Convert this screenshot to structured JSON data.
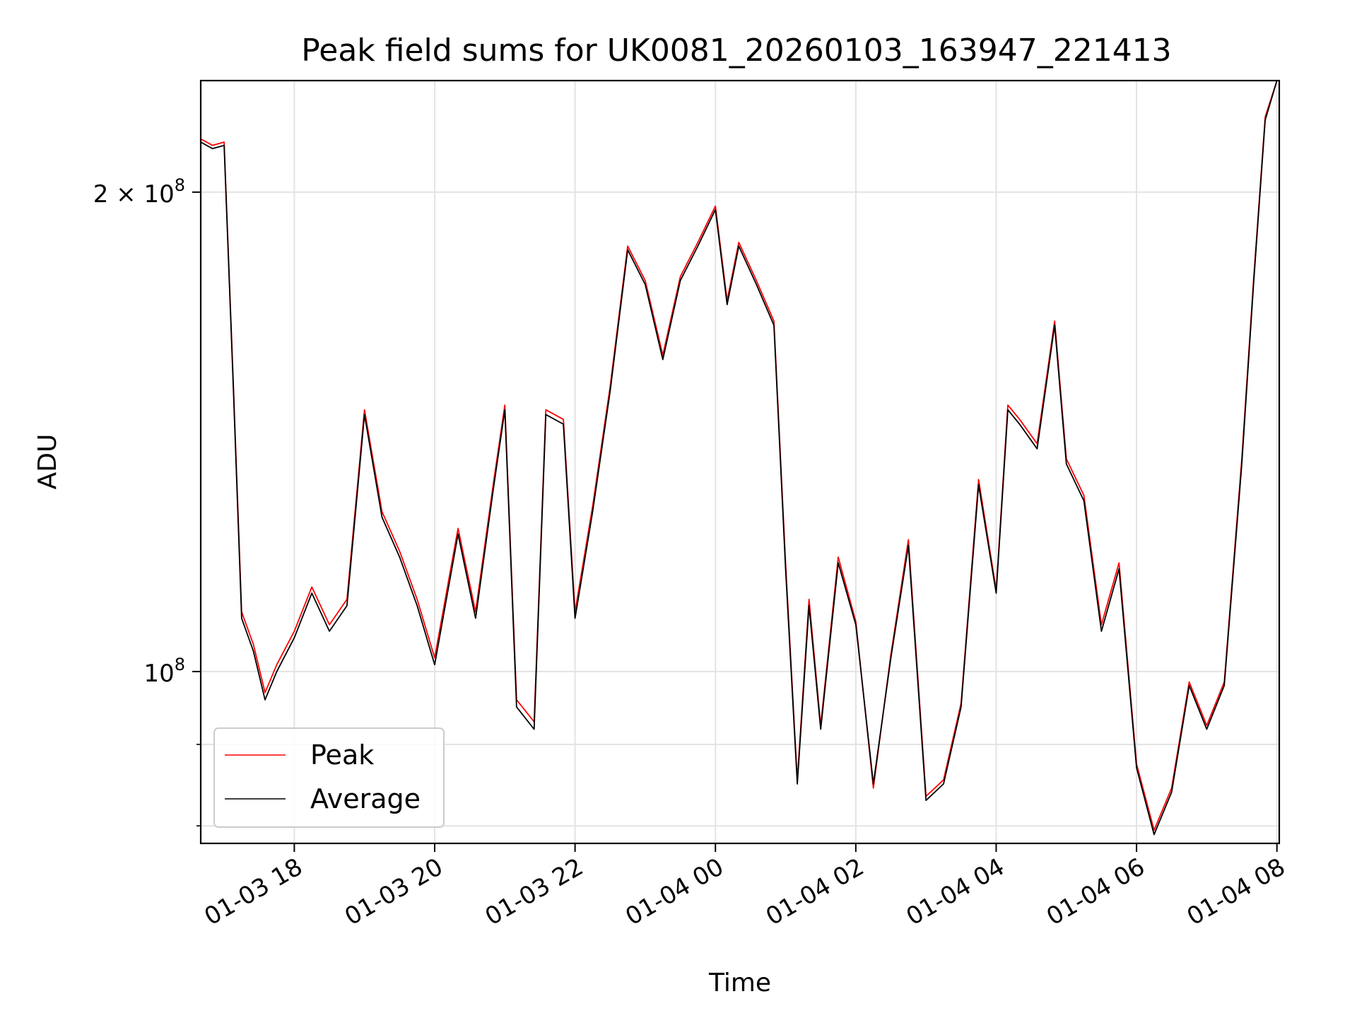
{
  "chart_data": {
    "type": "line",
    "title": "Peak field sums for UK0081_20260103_163947_221413",
    "xlabel": "Time",
    "ylabel": "ADU",
    "y_scale": "log",
    "xlim": [
      "2026-01-03 16:40",
      "2026-01-04 08:02"
    ],
    "ylim": [
      78000000,
      235000000
    ],
    "x_ticks": [
      "01-03 18",
      "01-03 20",
      "01-03 22",
      "01-04 00",
      "01-04 02",
      "01-04 04",
      "01-04 06",
      "01-04 08"
    ],
    "y_ticks": [
      {
        "value": 100000000,
        "label_base": "10",
        "label_exp": "8"
      },
      {
        "value": 200000000,
        "label_base": "2 × 10",
        "label_exp": "8"
      }
    ],
    "y_minor_gridlines": [
      80000000,
      90000000
    ],
    "grid": true,
    "legend_position": "lower-left",
    "series": [
      {
        "name": "Peak",
        "color": "#ff0000"
      },
      {
        "name": "Average",
        "color": "#000000"
      }
    ],
    "x": [
      "2026-01-03 16:40",
      "2026-01-03 16:50",
      "2026-01-03 17:00",
      "2026-01-03 17:08",
      "2026-01-03 17:15",
      "2026-01-03 17:25",
      "2026-01-03 17:35",
      "2026-01-03 17:45",
      "2026-01-03 18:00",
      "2026-01-03 18:15",
      "2026-01-03 18:30",
      "2026-01-03 18:45",
      "2026-01-03 19:00",
      "2026-01-03 19:15",
      "2026-01-03 19:30",
      "2026-01-03 19:45",
      "2026-01-03 20:00",
      "2026-01-03 20:20",
      "2026-01-03 20:35",
      "2026-01-03 20:50",
      "2026-01-03 21:00",
      "2026-01-03 21:10",
      "2026-01-03 21:25",
      "2026-01-03 21:35",
      "2026-01-03 21:50",
      "2026-01-03 22:00",
      "2026-01-03 22:15",
      "2026-01-03 22:30",
      "2026-01-03 22:45",
      "2026-01-03 23:00",
      "2026-01-03 23:15",
      "2026-01-03 23:30",
      "2026-01-03 23:45",
      "2026-01-04 00:00",
      "2026-01-04 00:10",
      "2026-01-04 00:20",
      "2026-01-04 00:35",
      "2026-01-04 00:50",
      "2026-01-04 01:00",
      "2026-01-04 01:10",
      "2026-01-04 01:20",
      "2026-01-04 01:30",
      "2026-01-04 01:45",
      "2026-01-04 02:00",
      "2026-01-04 02:15",
      "2026-01-04 02:30",
      "2026-01-04 02:45",
      "2026-01-04 03:00",
      "2026-01-04 03:15",
      "2026-01-04 03:30",
      "2026-01-04 03:45",
      "2026-01-04 04:00",
      "2026-01-04 04:10",
      "2026-01-04 04:20",
      "2026-01-04 04:35",
      "2026-01-04 04:50",
      "2026-01-04 05:00",
      "2026-01-04 05:15",
      "2026-01-04 05:30",
      "2026-01-04 05:45",
      "2026-01-04 06:00",
      "2026-01-04 06:15",
      "2026-01-04 06:30",
      "2026-01-04 06:45",
      "2026-01-04 07:00",
      "2026-01-04 07:15",
      "2026-01-04 07:30",
      "2026-01-04 07:40",
      "2026-01-04 07:50",
      "2026-01-04 08:00"
    ],
    "average": [
      215000000,
      213000000,
      214000000,
      150000000,
      108000000,
      103000000,
      96000000,
      100000000,
      105000000,
      112000000,
      106000000,
      110000000,
      145000000,
      125000000,
      118000000,
      110000000,
      101000000,
      122000000,
      108000000,
      130000000,
      146000000,
      95000000,
      92000000,
      145000000,
      143000000,
      108000000,
      126000000,
      150000000,
      184000000,
      175000000,
      157000000,
      176000000,
      185000000,
      195000000,
      170000000,
      185000000,
      175000000,
      165000000,
      116000000,
      85000000,
      110000000,
      92000000,
      117000000,
      107000000,
      85000000,
      102000000,
      120000000,
      83000000,
      85000000,
      95000000,
      131000000,
      112000000,
      146000000,
      143000000,
      138000000,
      165000000,
      135000000,
      128000000,
      106000000,
      116000000,
      87000000,
      79000000,
      84000000,
      98000000,
      92000000,
      98000000,
      135000000,
      175000000,
      222000000,
      235000000
    ],
    "peak": [
      216000000,
      214000000,
      215000000,
      151000000,
      109000000,
      104000000,
      97000000,
      101000000,
      106000000,
      113000000,
      107000000,
      111000000,
      146000000,
      126000000,
      119000000,
      111000000,
      102000000,
      123000000,
      109000000,
      131000000,
      147000000,
      96000000,
      93000000,
      146000000,
      144000000,
      109000000,
      127000000,
      151000000,
      185000000,
      176000000,
      158000000,
      177000000,
      186000000,
      196000000,
      171000000,
      186000000,
      176000000,
      166000000,
      117000000,
      85500000,
      111000000,
      92500000,
      118000000,
      107500000,
      84500000,
      102500000,
      121000000,
      83500000,
      85500000,
      95500000,
      132000000,
      112500000,
      147000000,
      144000000,
      139000000,
      166000000,
      136000000,
      129000000,
      107000000,
      117000000,
      87500000,
      79500000,
      84500000,
      98500000,
      92500000,
      98500000,
      136000000,
      176000000,
      223000000,
      235000000
    ]
  }
}
